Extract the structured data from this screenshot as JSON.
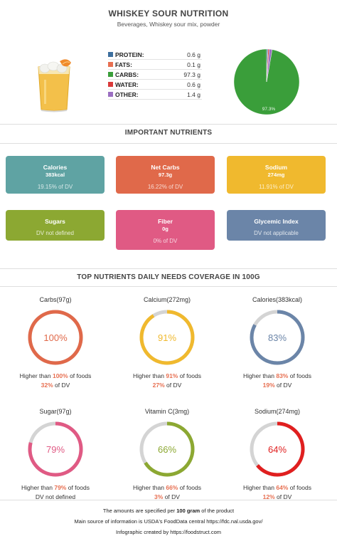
{
  "header": {
    "title": "WHISKEY SOUR NUTRITION",
    "subtitle": "Beverages, Whiskey sour mix, powder"
  },
  "macros": [
    {
      "label": "PROTEIN:",
      "value": "0.6 g",
      "color": "#3d6f9e"
    },
    {
      "label": "FATS:",
      "value": "0.1 g",
      "color": "#e76f51"
    },
    {
      "label": "CARBS:",
      "value": "97.3 g",
      "color": "#3a9e3a"
    },
    {
      "label": "WATER:",
      "value": "0.6 g",
      "color": "#d93a3a"
    },
    {
      "label": "OTHER:",
      "value": "1.4 g",
      "color": "#9b6fc2"
    }
  ],
  "sections": {
    "important": "IMPORTANT NUTRIENTS",
    "coverage": "TOP NUTRIENTS DAILY NEEDS COVERAGE IN 100G"
  },
  "nutrient_cards": [
    {
      "title": "Calories",
      "value": "383kcal",
      "dv": "19.15% of DV",
      "color": "#5fa3a3"
    },
    {
      "title": "Net Carbs",
      "value": "97.3g",
      "dv": "16.22% of DV",
      "color": "#e0694a"
    },
    {
      "title": "Sodium",
      "value": "274mg",
      "dv": "11.91% of DV",
      "color": "#f0b92e"
    },
    {
      "title": "Sugars",
      "value": "",
      "dv": "DV not defined",
      "color": "#8ca832"
    },
    {
      "title": "Fiber",
      "value": "0g",
      "dv": "0% of DV",
      "color": "#e05a84"
    },
    {
      "title": "Glycemic Index",
      "value": "",
      "dv": "DV not applicable",
      "color": "#6b85a8"
    }
  ],
  "chart_data": [
    {
      "type": "pie",
      "title": "",
      "categories": [
        "Protein",
        "Fats",
        "Carbs",
        "Water",
        "Other"
      ],
      "values": [
        0.6,
        0.1,
        97.3,
        0.6,
        1.4
      ],
      "colors": [
        "#3d6f9e",
        "#e76f51",
        "#3a9e3a",
        "#d93a3a",
        "#9b6fc2"
      ],
      "data_labels": [
        "",
        "",
        "97.3%",
        "",
        ""
      ]
    },
    {
      "type": "gauge",
      "title": "TOP NUTRIENTS DAILY NEEDS COVERAGE IN 100G",
      "gauges": [
        {
          "label": "Carbs(97g)",
          "percent": 100,
          "center": "100%",
          "line1_pre": "Higher than ",
          "line1_val": "100%",
          "line1_post": " of foods",
          "line2_val": "32%",
          "line2_post": " of DV",
          "color": "#e0694a"
        },
        {
          "label": "Calcium(272mg)",
          "percent": 91,
          "center": "91%",
          "line1_pre": "Higher than ",
          "line1_val": "91%",
          "line1_post": " of foods",
          "line2_val": "27%",
          "line2_post": " of DV",
          "color": "#f0b92e"
        },
        {
          "label": "Calories(383kcal)",
          "percent": 83,
          "center": "83%",
          "line1_pre": "Higher than ",
          "line1_val": "83%",
          "line1_post": " of foods",
          "line2_val": "19%",
          "line2_post": " of DV",
          "color": "#6b85a8"
        },
        {
          "label": "Sugar(97g)",
          "percent": 79,
          "center": "79%",
          "line1_pre": "Higher than ",
          "line1_val": "79%",
          "line1_post": " of foods",
          "line2_val": "",
          "line2_post": "DV not defined",
          "color": "#e05a84"
        },
        {
          "label": "Vitamin C(3mg)",
          "percent": 66,
          "center": "66%",
          "line1_pre": "Higher than ",
          "line1_val": "66%",
          "line1_post": " of foods",
          "line2_val": "3%",
          "line2_post": " of DV",
          "color": "#8ca832"
        },
        {
          "label": "Sodium(274mg)",
          "percent": 64,
          "center": "64%",
          "line1_pre": "Higher than ",
          "line1_val": "64%",
          "line1_post": " of foods",
          "line2_val": "12%",
          "line2_post": " of DV",
          "color": "#e01f1f"
        }
      ]
    }
  ],
  "footer": {
    "line1_pre": "The amounts are specified per ",
    "line1_bold": "100 gram",
    "line1_post": " of the product",
    "line2": "Main source of information is USDA's FoodData central https://fdc.nal.usda.gov/",
    "line3": "Infographic created by https://foodstruct.com"
  }
}
